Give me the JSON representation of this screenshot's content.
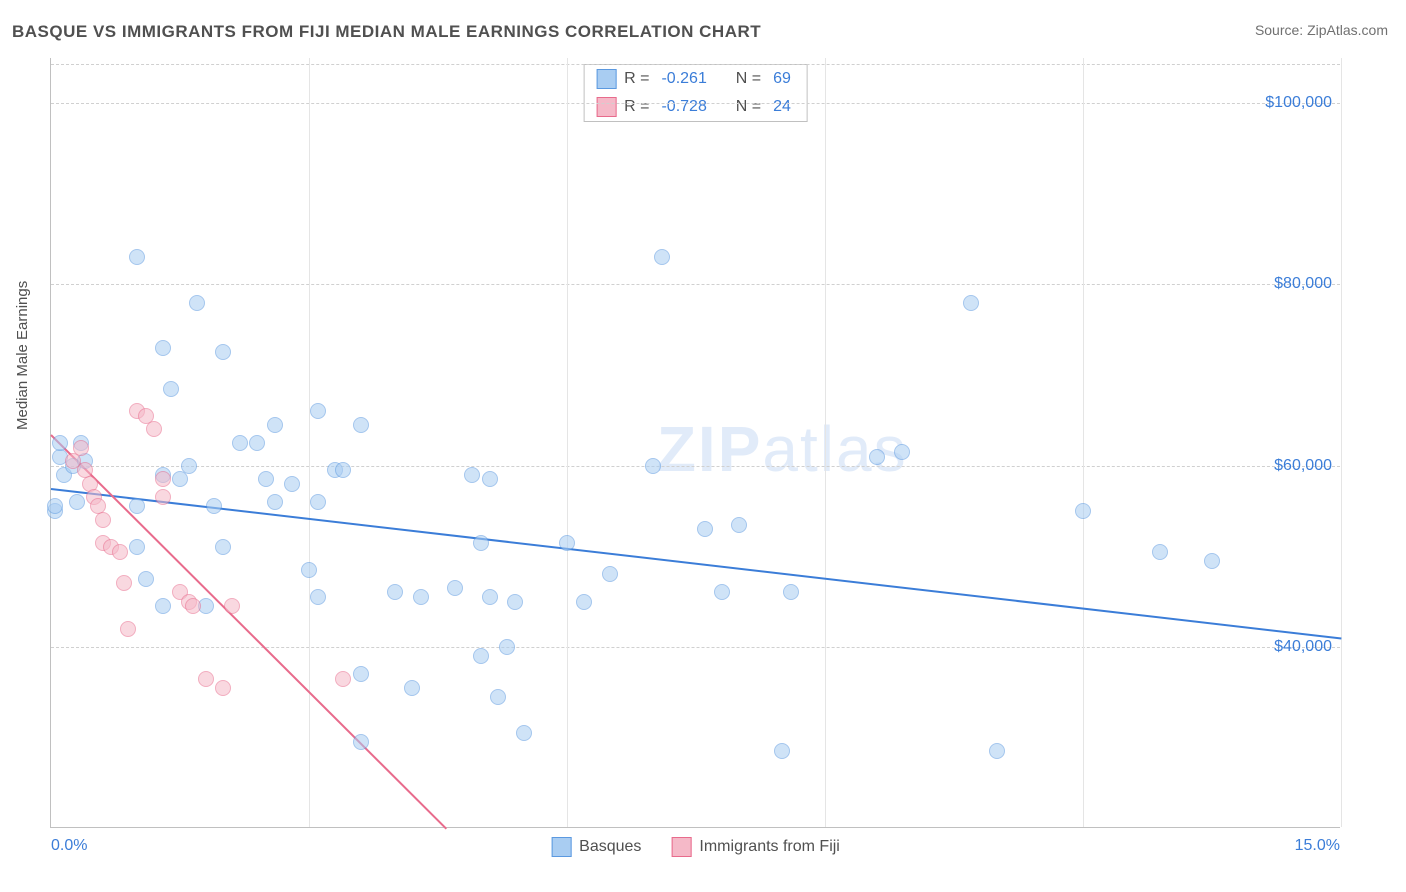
{
  "title": "BASQUE VS IMMIGRANTS FROM FIJI MEDIAN MALE EARNINGS CORRELATION CHART",
  "source": "Source: ZipAtlas.com",
  "ylabel": "Median Male Earnings",
  "watermark_bold": "ZIP",
  "watermark_light": "atlas",
  "chart": {
    "type": "scatter",
    "xlim": [
      0,
      15
    ],
    "ylim": [
      20000,
      105000
    ],
    "x_ticks": [
      0,
      3,
      6,
      9,
      12,
      15
    ],
    "x_tick_labels_visible": {
      "0": "0.0%",
      "15": "15.0%"
    },
    "y_ticks": [
      40000,
      60000,
      80000,
      100000
    ],
    "y_tick_labels": [
      "$40,000",
      "$60,000",
      "$80,000",
      "$100,000"
    ],
    "background_color": "#ffffff",
    "grid_color_h": "#d0d0d0",
    "grid_color_v": "#e5e5e5",
    "axis_color": "#c0c0c0",
    "marker_radius": 8,
    "marker_stroke_width": 1.2,
    "series": [
      {
        "name": "Basques",
        "fill": "#a9cdf2",
        "stroke": "#5b99e0",
        "fill_opacity": 0.55,
        "R": "-0.261",
        "N": "69",
        "trend": {
          "x1": 0,
          "y1": 57500,
          "x2": 15,
          "y2": 41000,
          "color": "#3b7dd8",
          "width": 2
        },
        "points": [
          [
            0.05,
            55000
          ],
          [
            0.05,
            55500
          ],
          [
            0.1,
            61000
          ],
          [
            0.1,
            62500
          ],
          [
            0.15,
            59000
          ],
          [
            0.25,
            60000
          ],
          [
            0.3,
            56000
          ],
          [
            0.35,
            62500
          ],
          [
            0.4,
            60500
          ],
          [
            1.0,
            83000
          ],
          [
            1.3,
            73000
          ],
          [
            1.3,
            59000
          ],
          [
            1.4,
            68500
          ],
          [
            1.5,
            58500
          ],
          [
            1.6,
            60000
          ],
          [
            1.0,
            55500
          ],
          [
            1.0,
            51000
          ],
          [
            1.1,
            47500
          ],
          [
            1.3,
            44500
          ],
          [
            1.7,
            78000
          ],
          [
            2.0,
            72500
          ],
          [
            2.2,
            62500
          ],
          [
            2.4,
            62500
          ],
          [
            2.5,
            58500
          ],
          [
            2.6,
            64500
          ],
          [
            2.6,
            56000
          ],
          [
            2.8,
            58000
          ],
          [
            1.9,
            55500
          ],
          [
            2.0,
            51000
          ],
          [
            1.8,
            44500
          ],
          [
            3.1,
            66000
          ],
          [
            3.6,
            64500
          ],
          [
            3.3,
            59500
          ],
          [
            3.4,
            59500
          ],
          [
            3.1,
            56000
          ],
          [
            3.1,
            45500
          ],
          [
            3.0,
            48500
          ],
          [
            3.6,
            37000
          ],
          [
            3.6,
            29500
          ],
          [
            4.0,
            46000
          ],
          [
            4.3,
            45500
          ],
          [
            4.7,
            46500
          ],
          [
            4.9,
            59000
          ],
          [
            4.2,
            35500
          ],
          [
            5.0,
            39000
          ],
          [
            5.1,
            58500
          ],
          [
            5.4,
            45000
          ],
          [
            5.3,
            40000
          ],
          [
            5.0,
            51500
          ],
          [
            5.1,
            45500
          ],
          [
            5.2,
            34500
          ],
          [
            5.5,
            30500
          ],
          [
            6.0,
            51500
          ],
          [
            6.2,
            45000
          ],
          [
            6.5,
            48000
          ],
          [
            7.1,
            83000
          ],
          [
            7.6,
            53000
          ],
          [
            7.0,
            60000
          ],
          [
            7.8,
            46000
          ],
          [
            8.0,
            53500
          ],
          [
            8.6,
            46000
          ],
          [
            8.5,
            28500
          ],
          [
            9.6,
            61000
          ],
          [
            9.9,
            61500
          ],
          [
            10.7,
            78000
          ],
          [
            11.0,
            28500
          ],
          [
            12.0,
            55000
          ],
          [
            12.9,
            50500
          ],
          [
            13.5,
            49500
          ]
        ]
      },
      {
        "name": "Immigrants from Fiji",
        "fill": "#f5b9c8",
        "stroke": "#e86b8c",
        "fill_opacity": 0.55,
        "R": "-0.728",
        "N": "24",
        "trend": {
          "x1": 0,
          "y1": 63500,
          "x2": 4.6,
          "y2": 20000,
          "color": "#e86b8c",
          "width": 2
        },
        "points": [
          [
            0.25,
            60500
          ],
          [
            0.35,
            62000
          ],
          [
            0.4,
            59500
          ],
          [
            0.45,
            58000
          ],
          [
            0.5,
            56500
          ],
          [
            0.55,
            55500
          ],
          [
            0.6,
            51500
          ],
          [
            0.6,
            54000
          ],
          [
            0.7,
            51000
          ],
          [
            0.8,
            50500
          ],
          [
            0.85,
            47000
          ],
          [
            0.9,
            42000
          ],
          [
            1.0,
            66000
          ],
          [
            1.1,
            65500
          ],
          [
            1.2,
            64000
          ],
          [
            1.3,
            58500
          ],
          [
            1.3,
            56500
          ],
          [
            1.5,
            46000
          ],
          [
            1.6,
            45000
          ],
          [
            1.65,
            44500
          ],
          [
            1.8,
            36500
          ],
          [
            2.0,
            35500
          ],
          [
            2.1,
            44500
          ],
          [
            3.4,
            36500
          ]
        ]
      }
    ]
  },
  "corr_legend": {
    "r_label": "R =",
    "n_label": "N ="
  },
  "text_colors": {
    "title": "#505050",
    "tick": "#3b7dd8",
    "value": "#3b7dd8",
    "label": "#505050"
  }
}
